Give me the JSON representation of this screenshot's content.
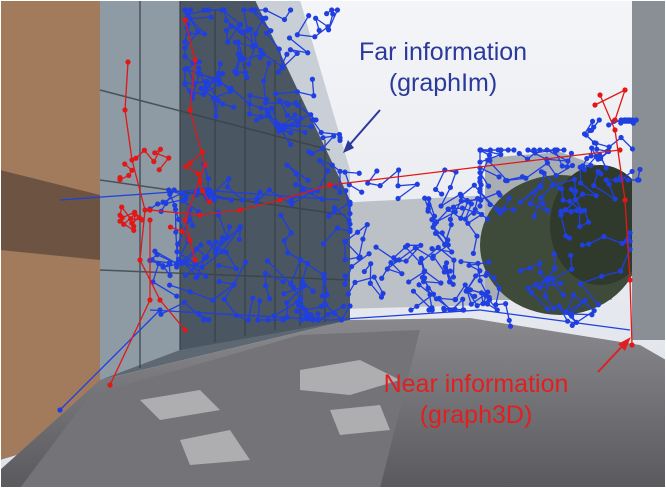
{
  "annotations": {
    "far": {
      "line1": "Far information",
      "line2": "(graphIm)",
      "color": "#2b3a9a"
    },
    "near": {
      "line1": "Near information",
      "line2": "(graph3D)",
      "color": "#e02020"
    }
  },
  "colors": {
    "far_graph": "#1f3fe0",
    "near_graph": "#e01818",
    "sky": "#eef0f4",
    "ground": "#6a6a6e"
  }
}
